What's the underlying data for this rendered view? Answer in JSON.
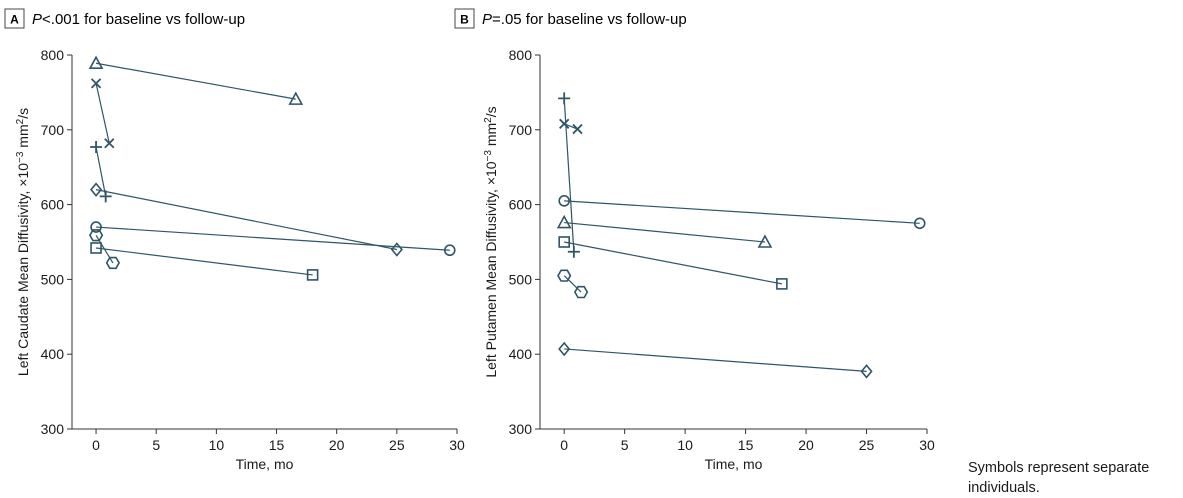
{
  "footnote": "Symbols represent separate individuals.",
  "colors": {
    "series": "#2f5566",
    "axis": "#333333",
    "text": "#1a1a1a"
  },
  "chart_data": [
    {
      "panel": "A",
      "type": "line",
      "title_italic": "P",
      "title_rest": "<.001 for baseline vs follow-up",
      "xlabel": "Time, mo",
      "ylabel": "Left Caudate Mean Diffusivity, ×10",
      "ylabel_sup": "−3",
      "ylabel_unit": "mm",
      "ylabel_unit_sup": "2",
      "ylabel_tail": "/s",
      "xlim": [
        -2,
        30
      ],
      "ylim": [
        300,
        800
      ],
      "xticks": [
        0,
        5,
        10,
        15,
        20,
        25,
        30
      ],
      "yticks": [
        300,
        400,
        500,
        600,
        700,
        800
      ],
      "grid": false,
      "series": [
        {
          "marker": "triangle",
          "points": [
            [
              0,
              789
            ],
            [
              16.6,
              741
            ]
          ]
        },
        {
          "marker": "x",
          "points": [
            [
              0,
              762
            ],
            [
              1.1,
              682
            ]
          ]
        },
        {
          "marker": "plus",
          "points": [
            [
              0,
              677
            ],
            [
              0.8,
              611
            ]
          ]
        },
        {
          "marker": "diamond",
          "points": [
            [
              0,
              620
            ],
            [
              25,
              540
            ]
          ]
        },
        {
          "marker": "circle",
          "points": [
            [
              0,
              570
            ],
            [
              29.4,
              539
            ]
          ]
        },
        {
          "marker": "hexagon",
          "points": [
            [
              0,
              559
            ],
            [
              1.4,
              522
            ]
          ]
        },
        {
          "marker": "square",
          "points": [
            [
              0,
              542
            ],
            [
              18,
              506
            ]
          ]
        }
      ]
    },
    {
      "panel": "B",
      "type": "line",
      "title_italic": "P",
      "title_rest": "=.05 for baseline vs follow-up",
      "xlabel": "Time, mo",
      "ylabel": "Left Putamen Mean Diffusivity, ×10",
      "ylabel_sup": "−3",
      "ylabel_unit": "mm",
      "ylabel_unit_sup": "2",
      "ylabel_tail": "/s",
      "xlim": [
        -2,
        30
      ],
      "ylim": [
        300,
        800
      ],
      "xticks": [
        0,
        5,
        10,
        15,
        20,
        25,
        30
      ],
      "yticks": [
        300,
        400,
        500,
        600,
        700,
        800
      ],
      "grid": false,
      "series": [
        {
          "marker": "plus",
          "points": [
            [
              0,
              742
            ],
            [
              0.8,
              537
            ]
          ]
        },
        {
          "marker": "x",
          "points": [
            [
              0,
              708
            ],
            [
              1.1,
              701
            ]
          ]
        },
        {
          "marker": "circle",
          "points": [
            [
              0,
              605
            ],
            [
              29.4,
              575
            ]
          ]
        },
        {
          "marker": "triangle",
          "points": [
            [
              0,
              576
            ],
            [
              16.6,
              550
            ]
          ]
        },
        {
          "marker": "square",
          "points": [
            [
              0,
              550
            ],
            [
              18,
              494
            ]
          ]
        },
        {
          "marker": "hexagon",
          "points": [
            [
              0,
              505
            ],
            [
              1.4,
              483
            ]
          ]
        },
        {
          "marker": "diamond",
          "points": [
            [
              0,
              407
            ],
            [
              25,
              377
            ]
          ]
        }
      ]
    }
  ]
}
